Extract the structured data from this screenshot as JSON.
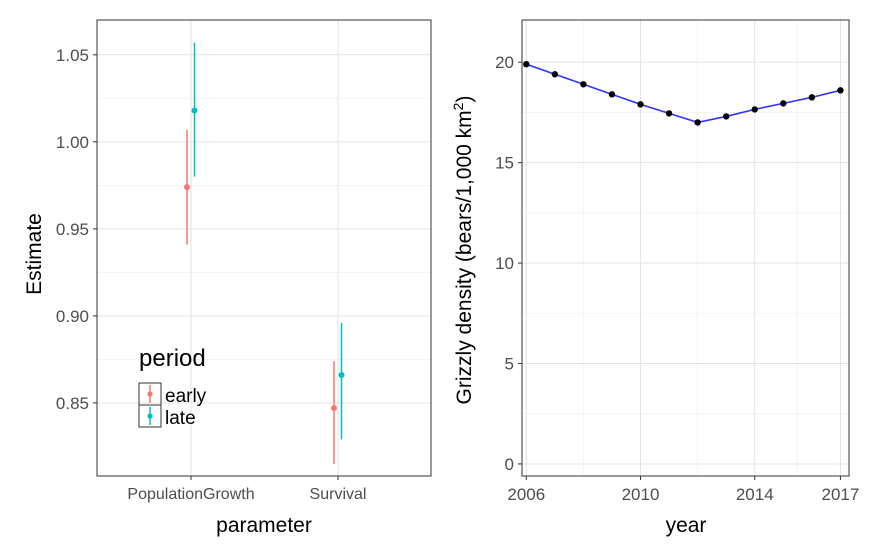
{
  "chart_data": [
    {
      "type": "scatter",
      "subtype": "pointrange",
      "xlabel": "parameter",
      "ylabel": "Estimate",
      "categories": [
        "PopulationGrowth",
        "Survival"
      ],
      "ylim": [
        0.808,
        1.07
      ],
      "yticks": [
        0.85,
        0.9,
        0.95,
        1.0,
        1.05
      ],
      "ytick_labels": [
        "0.85",
        "0.90",
        "0.95",
        "1.00",
        "1.05"
      ],
      "grid": true,
      "legend": {
        "title": "period",
        "placement": "bottom-left",
        "entries": [
          "early",
          "late"
        ]
      },
      "series": [
        {
          "name": "early",
          "color": "#F8766D",
          "points": [
            {
              "category": "PopulationGrowth",
              "estimate": 0.974,
              "lower": 0.941,
              "upper": 1.007
            },
            {
              "category": "Survival",
              "estimate": 0.847,
              "lower": 0.815,
              "upper": 0.874
            }
          ]
        },
        {
          "name": "late",
          "color": "#00BFC4",
          "points": [
            {
              "category": "PopulationGrowth",
              "estimate": 1.018,
              "lower": 0.98,
              "upper": 1.057
            },
            {
              "category": "Survival",
              "estimate": 0.866,
              "lower": 0.829,
              "upper": 0.896
            }
          ]
        }
      ]
    },
    {
      "type": "line",
      "xlabel": "year",
      "ylabel": "Grizzly density (bears/1,000 km",
      "ylabel_superscript": "2",
      "ylabel_suffix": ")",
      "x": [
        2006,
        2007,
        2008,
        2009,
        2010,
        2011,
        2012,
        2013,
        2014,
        2015,
        2016,
        2017
      ],
      "values": [
        19.9,
        19.4,
        18.9,
        18.4,
        17.9,
        17.45,
        17.0,
        17.3,
        17.65,
        17.95,
        18.25,
        18.6
      ],
      "xlim": [
        2005.85,
        2017.3
      ],
      "ylim": [
        -0.6,
        22.1
      ],
      "xticks": [
        2006,
        2010,
        2014,
        2017
      ],
      "xtick_labels": [
        "2006",
        "2010",
        "2014",
        "2017"
      ],
      "yticks": [
        0,
        5,
        10,
        15,
        20
      ],
      "ytick_labels": [
        "0",
        "5",
        "10",
        "15",
        "20"
      ],
      "grid": true,
      "line_color": "#3333FF",
      "point_color": "#000000"
    }
  ]
}
